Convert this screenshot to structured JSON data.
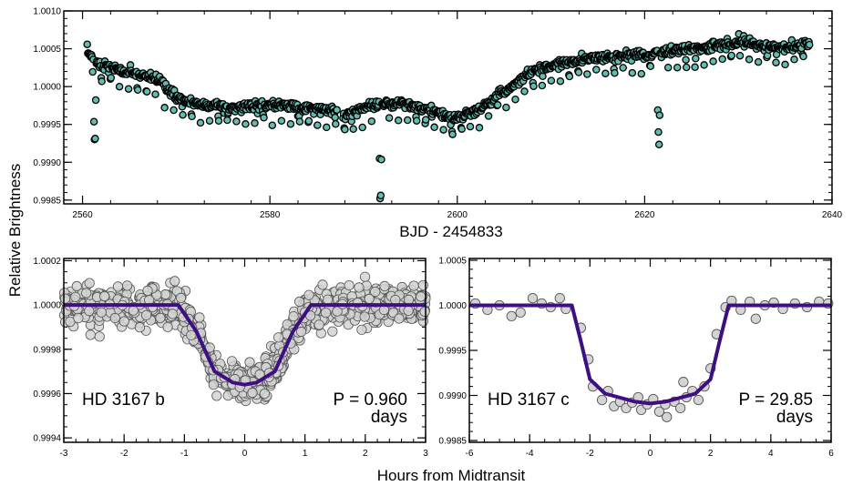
{
  "figure": {
    "ylabel": "Relative Brightness",
    "xlabel_bottom": "Hours from Midtransit"
  },
  "colors": {
    "top_fill": "#62bcb0",
    "top_stroke": "#000000",
    "fold_fill": "#d4d4d4",
    "fold_stroke": "#555555",
    "model": "#3d0f80"
  },
  "chart_data": [
    {
      "type": "scatter",
      "xlabel": "BJD - 2454833",
      "xlim": [
        2558,
        2640
      ],
      "ylim": [
        0.99845,
        1.001
      ],
      "xticks": [
        "2560",
        "2580",
        "2600",
        "2620",
        "2640"
      ],
      "xtick_values": [
        2560,
        2580,
        2600,
        2620,
        2640
      ],
      "yticks": [
        "0.9985",
        "0.9990",
        "0.9995",
        "1.0000",
        "1.0005",
        "1.0010"
      ],
      "ytick_values": [
        0.9985,
        0.999,
        0.9995,
        1.0,
        1.0005,
        1.001
      ],
      "gap": [
        2587.2,
        2587.8
      ],
      "trend": [
        [
          2560.5,
          1.00045
        ],
        [
          2562,
          1.00028
        ],
        [
          2565,
          1.00018
        ],
        [
          2568,
          1.0001
        ],
        [
          2570,
          0.99985
        ],
        [
          2573,
          0.99975
        ],
        [
          2576,
          0.99972
        ],
        [
          2580,
          0.99975
        ],
        [
          2583,
          0.99973
        ],
        [
          2587,
          0.99968
        ],
        [
          2588,
          0.99962
        ],
        [
          2591,
          0.99975
        ],
        [
          2594,
          0.99978
        ],
        [
          2597,
          0.9997
        ],
        [
          2599.5,
          0.99958
        ],
        [
          2602,
          0.99968
        ],
        [
          2605,
          0.99993
        ],
        [
          2608,
          1.0002
        ],
        [
          2611,
          1.0003
        ],
        [
          2615,
          1.00038
        ],
        [
          2620,
          1.00042
        ],
        [
          2625,
          1.0005
        ],
        [
          2630,
          1.00058
        ],
        [
          2634,
          1.00052
        ],
        [
          2637.5,
          1.00055
        ]
      ],
      "transits_b_offsets": [
        0,
        0.96
      ],
      "transit_b_depth": 0.00022,
      "transits_c": [
        2561.3,
        2591.8,
        2621.5
      ],
      "transit_c_depth": 0.00105
    },
    {
      "type": "scatter",
      "label": "HD 3167 b",
      "period_text": "P = 0.960",
      "period_unit": "days",
      "xlim": [
        -3,
        3
      ],
      "ylim": [
        0.99938,
        1.00021
      ],
      "xticks": [
        "-3",
        "-2",
        "-1",
        "0",
        "1",
        "2",
        "3"
      ],
      "xtick_values": [
        -3,
        -2,
        -1,
        0,
        1,
        2,
        3
      ],
      "yticks": [
        "0.9994",
        "0.9996",
        "0.9998",
        "1.0000",
        "1.0002"
      ],
      "ytick_values": [
        0.9994,
        0.9996,
        0.9998,
        1.0,
        1.0002
      ],
      "model": {
        "x": [
          -3,
          -1.1,
          -0.8,
          -0.5,
          -0.2,
          0,
          0.2,
          0.5,
          0.8,
          1.1,
          3
        ],
        "y": [
          1.0,
          1.0,
          0.99988,
          0.9997,
          0.99965,
          0.99964,
          0.99965,
          0.9997,
          0.99988,
          1.0,
          1.0
        ]
      }
    },
    {
      "type": "scatter",
      "label": "HD 3167 c",
      "period_text": "P = 29.85",
      "period_unit": "days",
      "xlim": [
        -6,
        6
      ],
      "ylim": [
        0.99848,
        1.00052
      ],
      "xticks": [
        "-6",
        "-4",
        "-2",
        "0",
        "2",
        "4",
        "6"
      ],
      "xtick_values": [
        -6,
        -4,
        -2,
        0,
        2,
        4,
        6
      ],
      "yticks": [
        "0.9985",
        "0.9990",
        "0.9995",
        "1.0000",
        "1.0005"
      ],
      "ytick_values": [
        0.9985,
        0.999,
        0.9995,
        1.0,
        1.0005
      ],
      "model": {
        "x": [
          -6,
          -2.6,
          -2.3,
          -2.0,
          -1.5,
          -0.5,
          0,
          0.5,
          1.5,
          2.0,
          2.3,
          2.6,
          6
        ],
        "y": [
          1.0,
          1.0,
          0.9996,
          0.99918,
          0.99902,
          0.99893,
          0.99891,
          0.99893,
          0.99902,
          0.99918,
          0.9996,
          1.0,
          1.0
        ]
      },
      "points": [
        [
          -5.8,
          1.00002
        ],
        [
          -5.4,
          0.99995
        ],
        [
          -5.0,
          1.0
        ],
        [
          -4.6,
          0.99988
        ],
        [
          -4.3,
          0.99992
        ],
        [
          -3.9,
          1.00008
        ],
        [
          -3.6,
          1.00002
        ],
        [
          -3.3,
          0.99998
        ],
        [
          -3.0,
          1.00008
        ],
        [
          -2.8,
          0.99996
        ],
        [
          -2.3,
          0.99975
        ],
        [
          -2.05,
          0.9994
        ],
        [
          -1.9,
          0.9991
        ],
        [
          -1.6,
          0.99895
        ],
        [
          -1.4,
          0.99905
        ],
        [
          -1.2,
          0.99888
        ],
        [
          -1.0,
          0.99893
        ],
        [
          -0.8,
          0.99886
        ],
        [
          -0.6,
          0.99892
        ],
        [
          -0.4,
          0.99898
        ],
        [
          -0.3,
          0.99884
        ],
        [
          -0.1,
          0.9989
        ],
        [
          0.1,
          0.99896
        ],
        [
          0.3,
          0.99882
        ],
        [
          0.5,
          0.9989
        ],
        [
          0.55,
          0.99876
        ],
        [
          0.8,
          0.99893
        ],
        [
          1.0,
          0.99886
        ],
        [
          1.2,
          0.99898
        ],
        [
          1.1,
          0.99915
        ],
        [
          1.4,
          0.99905
        ],
        [
          1.6,
          0.99895
        ],
        [
          1.8,
          0.9991
        ],
        [
          2.0,
          0.9993
        ],
        [
          2.2,
          0.99968
        ],
        [
          2.5,
          0.99998
        ],
        [
          2.7,
          1.00005
        ],
        [
          3.0,
          0.99995
        ],
        [
          3.3,
          1.00004
        ],
        [
          3.5,
          0.99985
        ],
        [
          3.8,
          1.0
        ],
        [
          4.1,
          1.00003
        ],
        [
          4.4,
          0.99996
        ],
        [
          4.8,
          1.00002
        ],
        [
          5.2,
          0.99998
        ],
        [
          5.6,
          1.00004
        ],
        [
          5.9,
          1.00002
        ]
      ]
    }
  ]
}
